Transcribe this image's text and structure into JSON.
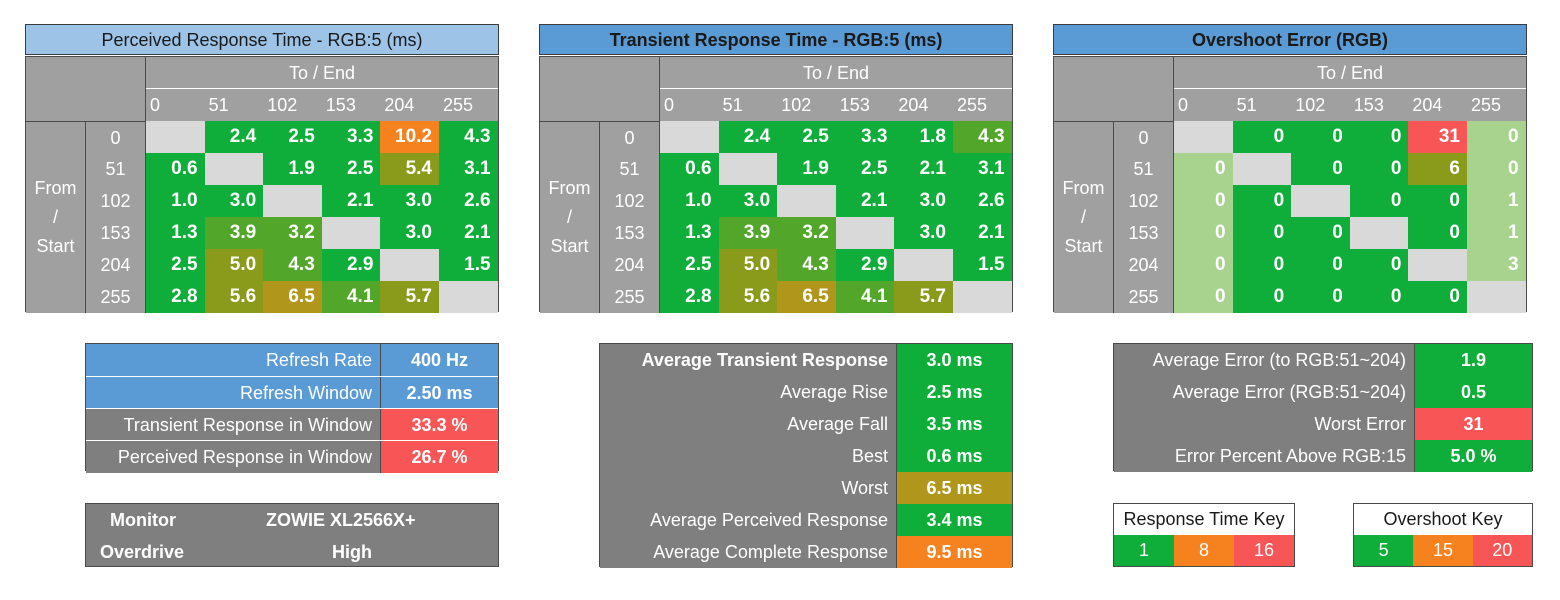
{
  "axes": {
    "to_end": "To / End",
    "from_start": [
      "From",
      "/",
      "Start"
    ],
    "levels": [
      "0",
      "51",
      "102",
      "153",
      "204",
      "255"
    ]
  },
  "colors": {
    "green": "#0fae3a",
    "olive_green": "#52a72a",
    "olive": "#8a9a1a",
    "dark_gold": "#b0961a",
    "orange": "#f6821f",
    "red": "#f85656",
    "light_green": "#a8d38e",
    "diag": "#d9d9d9",
    "gray": "#a0a0a0",
    "dark_gray": "#7f7f7f",
    "blue_light": "#9dc3e6",
    "blue": "#5b9bd5"
  },
  "chart_data": [
    {
      "type": "heatmap",
      "title": "Perceived Response Time - RGB:5 (ms)",
      "xlabel": "To / End",
      "ylabel": "From / Start",
      "x": [
        "0",
        "51",
        "102",
        "153",
        "204",
        "255"
      ],
      "y": [
        "0",
        "51",
        "102",
        "153",
        "204",
        "255"
      ],
      "values": [
        [
          null,
          "2.4",
          "2.5",
          "3.3",
          "10.2",
          "4.3"
        ],
        [
          "0.6",
          null,
          "1.9",
          "2.5",
          "5.4",
          "3.1"
        ],
        [
          "1.0",
          "3.0",
          null,
          "2.1",
          "3.0",
          "2.6"
        ],
        [
          "1.3",
          "3.9",
          "3.2",
          null,
          "3.0",
          "2.1"
        ],
        [
          "2.5",
          "5.0",
          "4.3",
          "2.9",
          null,
          "1.5"
        ],
        [
          "2.8",
          "5.6",
          "6.5",
          "4.1",
          "5.7",
          null
        ]
      ],
      "color_keys": [
        [
          "",
          "g",
          "g",
          "g",
          "o",
          "g"
        ],
        [
          "g",
          "",
          "g",
          "g",
          "ol",
          "g"
        ],
        [
          "g",
          "g",
          "",
          "g",
          "g",
          "g"
        ],
        [
          "g",
          "og",
          "og",
          "",
          "g",
          "g"
        ],
        [
          "g",
          "ol",
          "og",
          "g",
          "",
          "g"
        ],
        [
          "g",
          "ol",
          "dg",
          "og",
          "ol",
          ""
        ]
      ]
    },
    {
      "type": "heatmap",
      "title": "Transient Response Time - RGB:5 (ms)",
      "xlabel": "To / End",
      "ylabel": "From / Start",
      "x": [
        "0",
        "51",
        "102",
        "153",
        "204",
        "255"
      ],
      "y": [
        "0",
        "51",
        "102",
        "153",
        "204",
        "255"
      ],
      "values": [
        [
          null,
          "2.4",
          "2.5",
          "3.3",
          "1.8",
          "4.3"
        ],
        [
          "0.6",
          null,
          "1.9",
          "2.5",
          "2.1",
          "3.1"
        ],
        [
          "1.0",
          "3.0",
          null,
          "2.1",
          "3.0",
          "2.6"
        ],
        [
          "1.3",
          "3.9",
          "3.2",
          null,
          "3.0",
          "2.1"
        ],
        [
          "2.5",
          "5.0",
          "4.3",
          "2.9",
          null,
          "1.5"
        ],
        [
          "2.8",
          "5.6",
          "6.5",
          "4.1",
          "5.7",
          null
        ]
      ],
      "color_keys": [
        [
          "",
          "g",
          "g",
          "g",
          "g",
          "og"
        ],
        [
          "g",
          "",
          "g",
          "g",
          "g",
          "g"
        ],
        [
          "g",
          "g",
          "",
          "g",
          "g",
          "g"
        ],
        [
          "g",
          "og",
          "og",
          "",
          "g",
          "g"
        ],
        [
          "g",
          "ol",
          "og",
          "g",
          "",
          "g"
        ],
        [
          "g",
          "ol",
          "dg",
          "og",
          "ol",
          ""
        ]
      ]
    },
    {
      "type": "heatmap",
      "title": "Overshoot Error (RGB)",
      "xlabel": "To / End",
      "ylabel": "From / Start",
      "x": [
        "0",
        "51",
        "102",
        "153",
        "204",
        "255"
      ],
      "y": [
        "0",
        "51",
        "102",
        "153",
        "204",
        "255"
      ],
      "values": [
        [
          null,
          "0",
          "0",
          "0",
          "31",
          "0"
        ],
        [
          "0",
          null,
          "0",
          "0",
          "6",
          "0"
        ],
        [
          "0",
          "0",
          null,
          "0",
          "0",
          "1"
        ],
        [
          "0",
          "0",
          "0",
          null,
          "0",
          "1"
        ],
        [
          "0",
          "0",
          "0",
          "0",
          null,
          "3"
        ],
        [
          "0",
          "0",
          "0",
          "0",
          "0",
          null
        ]
      ],
      "color_keys": [
        [
          "",
          "g",
          "g",
          "g",
          "r",
          "lg"
        ],
        [
          "lg",
          "",
          "g",
          "g",
          "ol",
          "lg"
        ],
        [
          "lg",
          "g",
          "",
          "g",
          "g",
          "lg"
        ],
        [
          "lg",
          "g",
          "g",
          "",
          "g",
          "lg"
        ],
        [
          "lg",
          "g",
          "g",
          "g",
          "",
          "lg"
        ],
        [
          "lg",
          "g",
          "g",
          "g",
          "g",
          ""
        ]
      ]
    }
  ],
  "refresh_table": {
    "rows": [
      {
        "label": "Refresh Rate",
        "value": "400 Hz",
        "label_bg": "blue",
        "value_bg": "blue"
      },
      {
        "label": "Refresh Window",
        "value": "2.50 ms",
        "label_bg": "blue",
        "value_bg": "blue"
      },
      {
        "label": "Transient Response in Window",
        "value": "33.3 %",
        "label_bg": "dark_gray",
        "value_bg": "red"
      },
      {
        "label": "Perceived Response in Window",
        "value": "26.7 %",
        "label_bg": "dark_gray",
        "value_bg": "red"
      }
    ]
  },
  "monitor_table": {
    "monitor_label": "Monitor",
    "monitor_value": "ZOWIE XL2566X+",
    "overdrive_label": "Overdrive",
    "overdrive_value": "High"
  },
  "transient_stats": {
    "rows": [
      {
        "label": "Average Transient Response",
        "value": "3.0 ms",
        "bold": true,
        "value_bg": "green"
      },
      {
        "label": "Average Rise",
        "value": "2.5 ms",
        "bold": false,
        "value_bg": "green"
      },
      {
        "label": "Average Fall",
        "value": "3.5 ms",
        "bold": false,
        "value_bg": "green"
      },
      {
        "label": "Best",
        "value": "0.6 ms",
        "bold": false,
        "value_bg": "green"
      },
      {
        "label": "Worst",
        "value": "6.5 ms",
        "bold": false,
        "value_bg": "dark_gold"
      },
      {
        "label": "Average Perceived Response",
        "value": "3.4 ms",
        "bold": false,
        "value_bg": "green"
      },
      {
        "label": "Average Complete Response",
        "value": "9.5 ms",
        "bold": false,
        "value_bg": "orange"
      }
    ]
  },
  "error_stats": {
    "rows": [
      {
        "label": "Average Error (to RGB:51~204)",
        "value": "1.9",
        "value_bg": "green"
      },
      {
        "label": "Average Error (RGB:51~204)",
        "value": "0.5",
        "value_bg": "green"
      },
      {
        "label": "Worst Error",
        "value": "31",
        "value_bg": "red"
      },
      {
        "label": "Error Percent Above RGB:15",
        "value": "5.0 %",
        "value_bg": "green"
      }
    ]
  },
  "response_key": {
    "title": "Response Time Key",
    "values": [
      "1",
      "8",
      "16"
    ],
    "colors": [
      "green",
      "orange",
      "red"
    ]
  },
  "overshoot_key": {
    "title": "Overshoot Key",
    "values": [
      "5",
      "15",
      "20"
    ],
    "colors": [
      "green",
      "orange",
      "red"
    ]
  }
}
